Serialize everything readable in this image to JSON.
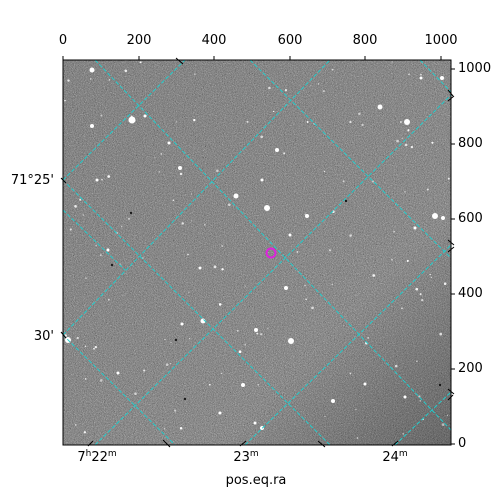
{
  "image": {
    "description": "Grayscale astronomical field with a cyan dashed celestial coordinate grid and a magenta circle marking a target",
    "colors": {
      "grid": "#22cccc",
      "marker": "#dd22dd",
      "frame": "#000000"
    }
  },
  "axes": {
    "top_ticks": [
      "0",
      "200",
      "400",
      "600",
      "800",
      "1000"
    ],
    "right_ticks": [
      "0",
      "200",
      "400",
      "600",
      "800",
      "1000"
    ],
    "bottom_ticks": [
      {
        "major": "7",
        "unit1": "h",
        "minor": "22",
        "unit2": "m"
      },
      {
        "major": "23",
        "unit1": "m"
      },
      {
        "major": "24",
        "unit1": "m"
      }
    ],
    "left_ticks": [
      "71°25'",
      "30'"
    ],
    "xlabel": "pos.eq.ra"
  }
}
